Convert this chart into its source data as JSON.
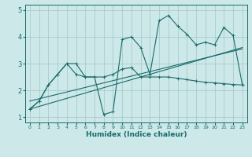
{
  "title": "",
  "xlabel": "Humidex (Indice chaleur)",
  "bg_color": "#cce8e8",
  "grid_color": "#aacccc",
  "line_color": "#1a6b6b",
  "xlim": [
    -0.5,
    23.5
  ],
  "ylim": [
    0.8,
    5.2
  ],
  "xticks": [
    0,
    1,
    2,
    3,
    4,
    5,
    6,
    7,
    8,
    9,
    10,
    11,
    12,
    13,
    14,
    15,
    16,
    17,
    18,
    19,
    20,
    21,
    22,
    23
  ],
  "yticks": [
    1,
    2,
    3,
    4,
    5
  ],
  "line1_x": [
    0,
    1,
    2,
    3,
    4,
    5,
    6,
    7,
    8,
    9,
    10,
    11,
    12,
    13,
    14,
    15,
    16,
    17,
    18,
    19,
    20,
    21,
    22,
    23
  ],
  "line1_y": [
    1.3,
    1.6,
    2.2,
    2.6,
    3.0,
    3.0,
    2.5,
    2.5,
    1.1,
    1.2,
    3.9,
    4.0,
    3.6,
    2.6,
    4.6,
    4.8,
    4.4,
    4.1,
    3.7,
    3.8,
    3.7,
    4.35,
    4.05,
    2.2
  ],
  "line2_x": [
    0,
    1,
    2,
    3,
    4,
    5,
    6,
    7,
    8,
    9,
    10,
    11,
    12,
    13,
    14,
    15,
    16,
    17,
    18,
    19,
    20,
    21,
    22,
    23
  ],
  "line2_y": [
    1.3,
    1.6,
    2.2,
    2.6,
    3.0,
    2.6,
    2.5,
    2.5,
    2.5,
    2.6,
    2.8,
    2.85,
    2.5,
    2.5,
    2.5,
    2.5,
    2.45,
    2.4,
    2.35,
    2.3,
    2.28,
    2.25,
    2.22,
    2.2
  ],
  "line3_x": [
    0,
    23
  ],
  "line3_y": [
    1.3,
    3.6
  ],
  "line4_x": [
    0,
    23
  ],
  "line4_y": [
    1.6,
    3.55
  ]
}
